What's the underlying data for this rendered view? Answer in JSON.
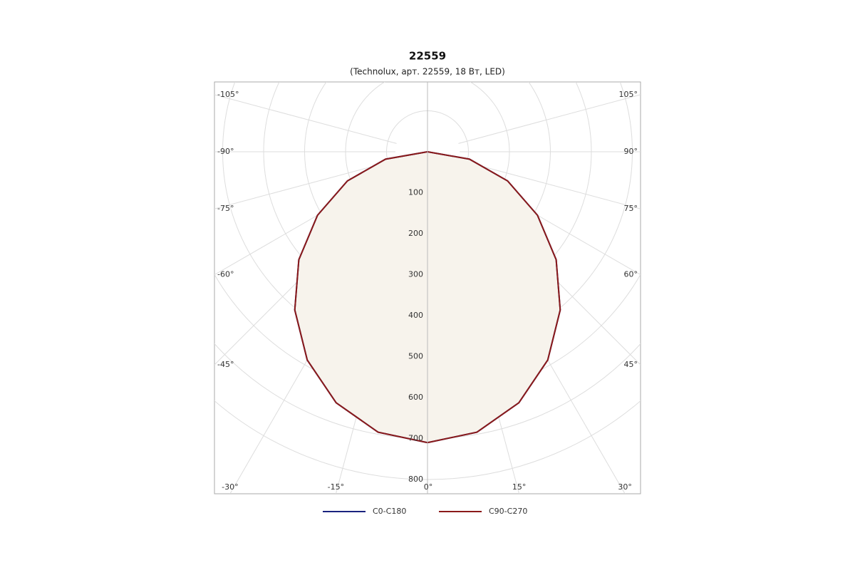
{
  "chart_data": {
    "type": "polar",
    "title": "22559",
    "subtitle": "(Technolux, арт. 22559, 18 Вт, LED)",
    "angles": [
      -90,
      -80,
      -70,
      -60,
      -50,
      -40,
      -30,
      -20,
      -10,
      0,
      10,
      20,
      30,
      40,
      50,
      60,
      70,
      80,
      90
    ],
    "series": [
      {
        "name": "C0-C180",
        "color": "#1a237e",
        "values": [
          0,
          104,
          208,
          310,
          410,
          504,
          587,
          652,
          695,
          710,
          695,
          652,
          587,
          504,
          410,
          310,
          208,
          104,
          0
        ]
      },
      {
        "name": "C90-C270",
        "color": "#8b1a1a",
        "values": [
          0,
          104,
          208,
          310,
          410,
          504,
          587,
          652,
          695,
          710,
          695,
          652,
          587,
          504,
          410,
          310,
          208,
          104,
          0
        ]
      }
    ],
    "ylim": [
      0,
      800
    ],
    "yticks": [
      100,
      200,
      300,
      400,
      500,
      600,
      700,
      800
    ],
    "angle_ticks": [
      {
        "value": -105,
        "label": "-105°"
      },
      {
        "value": -90,
        "label": "-90°"
      },
      {
        "value": -75,
        "label": "-75°"
      },
      {
        "value": -60,
        "label": "-60°"
      },
      {
        "value": -45,
        "label": "-45°"
      },
      {
        "value": -30,
        "label": "-30°"
      },
      {
        "value": -15,
        "label": "-15°"
      },
      {
        "value": 0,
        "label": "0°"
      },
      {
        "value": 15,
        "label": "15°"
      },
      {
        "value": 30,
        "label": "30°"
      },
      {
        "value": 45,
        "label": "45°"
      },
      {
        "value": 60,
        "label": "60°"
      },
      {
        "value": 75,
        "label": "75°"
      },
      {
        "value": 90,
        "label": "90°"
      },
      {
        "value": 105,
        "label": "105°"
      }
    ],
    "fill": "#f7f3ec"
  }
}
